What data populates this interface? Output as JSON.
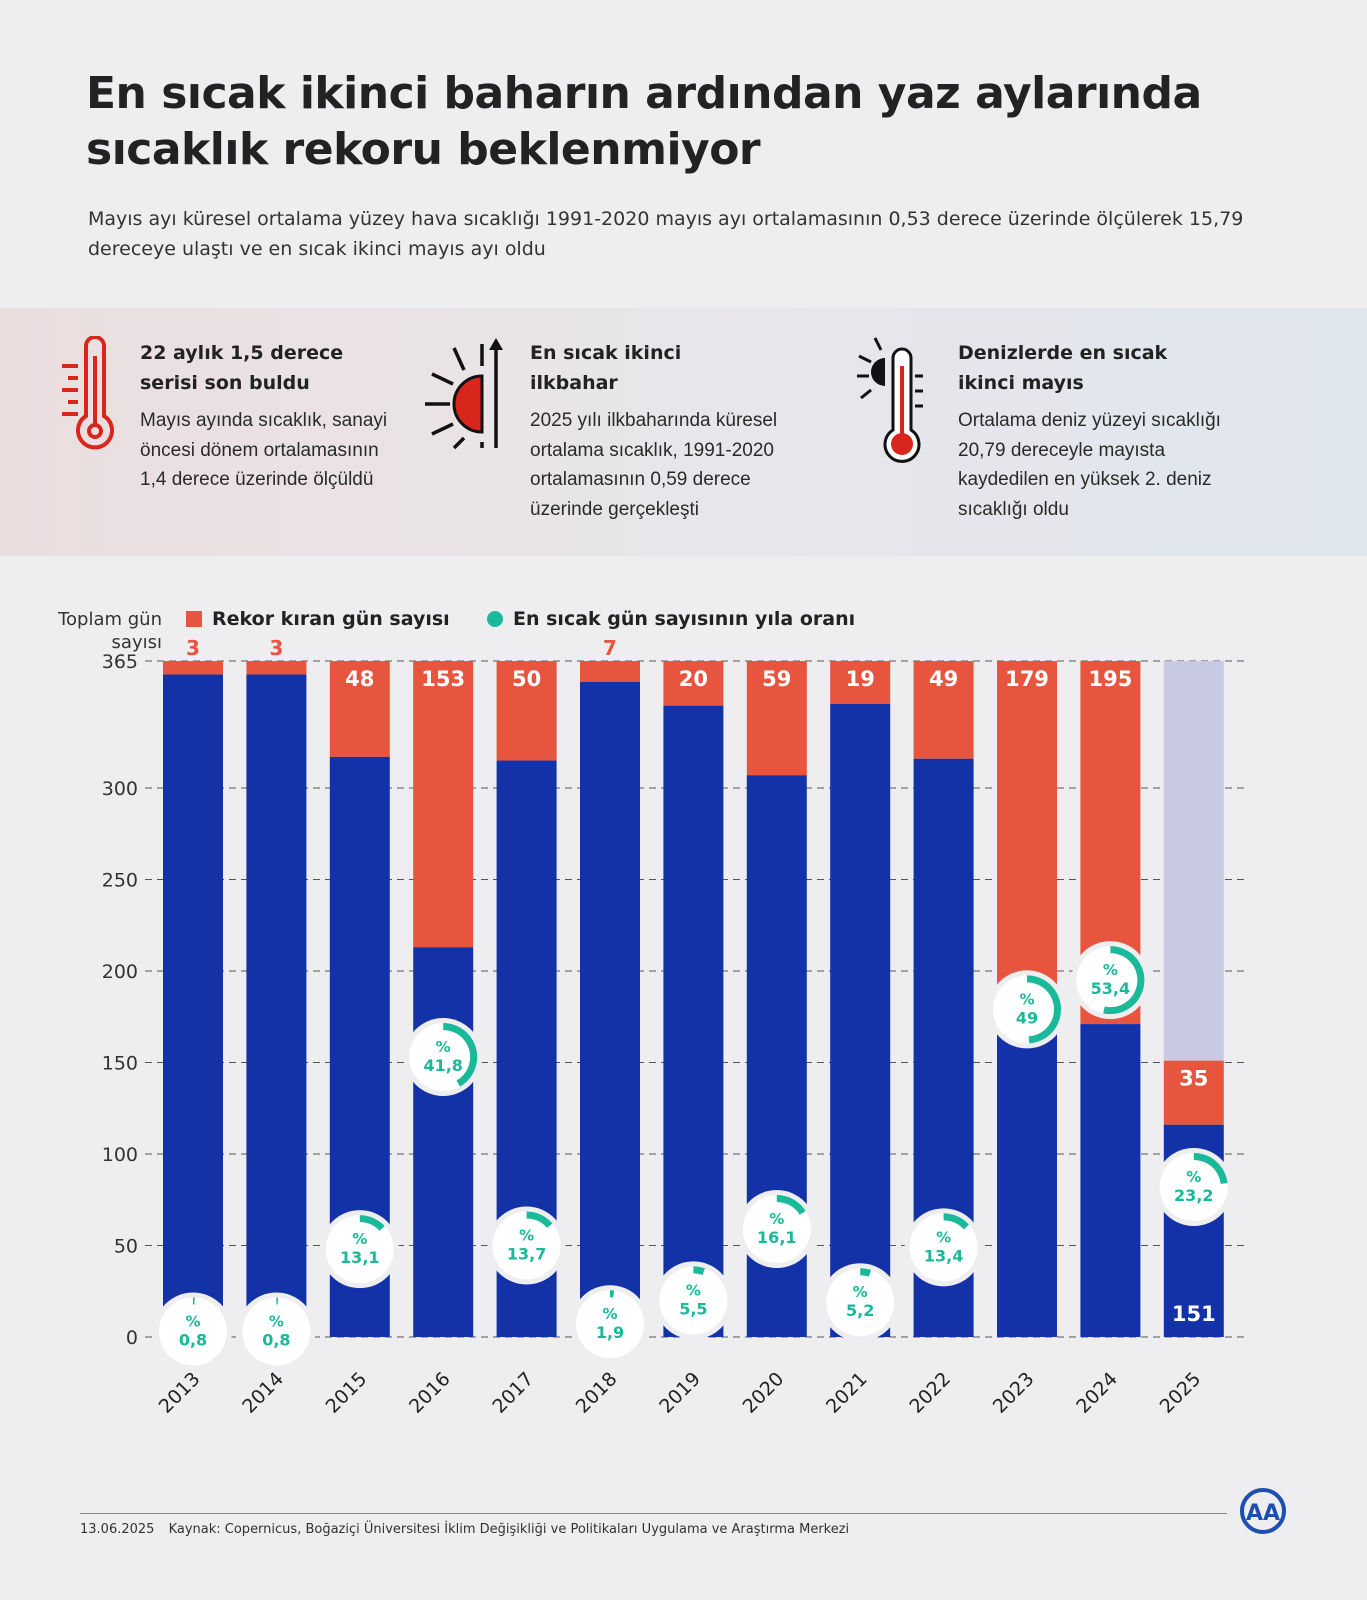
{
  "header": {
    "title": "En sıcak ikinci baharın ardından yaz aylarında sıcaklık rekoru beklenmiyor",
    "subtitle": "Mayıs ayı küresel ortalama yüzey hava sıcaklığı 1991-2020 mayıs ayı ortalamasının 0,53 derece üzerinde ölçülerek 15,79 dereceye ulaştı ve en sıcak ikinci mayıs ayı oldu"
  },
  "facts": [
    {
      "icon": "thermometer-icon",
      "title": "22 aylık 1,5 derece serisi son buldu",
      "text": "Mayıs ayında sıcaklık, sanayi öncesi dönem ortalamasının 1,4 derece üzerinde ölçüldü"
    },
    {
      "icon": "sun-rising-arrow-icon",
      "title": "En sıcak ikinci ilkbahar",
      "text": "2025 yılı ilkbaharında küresel ortalama sıcaklık, 1991-2020 ortalamasının 0,59 derece üzerinde gerçekleşti"
    },
    {
      "icon": "sun-thermometer-icon",
      "title": "Denizlerde en sıcak ikinci mayıs",
      "text": "Ortalama deniz yüzeyi sıcaklığı 20,79 dereceyle mayısta kaydedilen en yüksek 2. deniz sıcaklığı oldu"
    }
  ],
  "chart_data": {
    "type": "bar",
    "stacked": true,
    "ylabel": "Toplam gün sayısı",
    "ylim": [
      0,
      365
    ],
    "yticks": [
      0,
      50,
      100,
      150,
      200,
      250,
      300,
      365
    ],
    "grid": true,
    "legend_position": "top-left",
    "legend": [
      {
        "label": "Rekor kıran gün sayısı",
        "color": "#e8553f",
        "marker": "square"
      },
      {
        "label": "En sıcak gün sayısının yıla oranı",
        "color": "#19b99a",
        "marker": "circle"
      }
    ],
    "categories": [
      "2013",
      "2014",
      "2015",
      "2016",
      "2017",
      "2018",
      "2019",
      "2020",
      "2021",
      "2022",
      "2023",
      "2024",
      "2025"
    ],
    "total_days": [
      365,
      365,
      365,
      366,
      365,
      365,
      365,
      366,
      365,
      365,
      365,
      366,
      151
    ],
    "record_days": [
      3,
      3,
      48,
      153,
      50,
      7,
      20,
      59,
      19,
      49,
      179,
      195,
      35
    ],
    "record_share_pct": [
      0.8,
      0.8,
      13.1,
      41.8,
      13.7,
      1.9,
      5.5,
      16.1,
      5.2,
      13.4,
      49,
      53.4,
      23.2
    ],
    "pct_prefix": "%",
    "total_label_2025": "151",
    "colors": {
      "record": "#e8553f",
      "other": "#1432a8",
      "remaining": "#c8cae3",
      "share": "#19b99a"
    }
  },
  "footer": {
    "date": "13.06.2025",
    "source": "Kaynak: Copernicus, Boğaziçi Üniversitesi İklim Değişikliği ve Politikaları Uygulama ve Araştırma Merkezi",
    "logo": "AA"
  }
}
